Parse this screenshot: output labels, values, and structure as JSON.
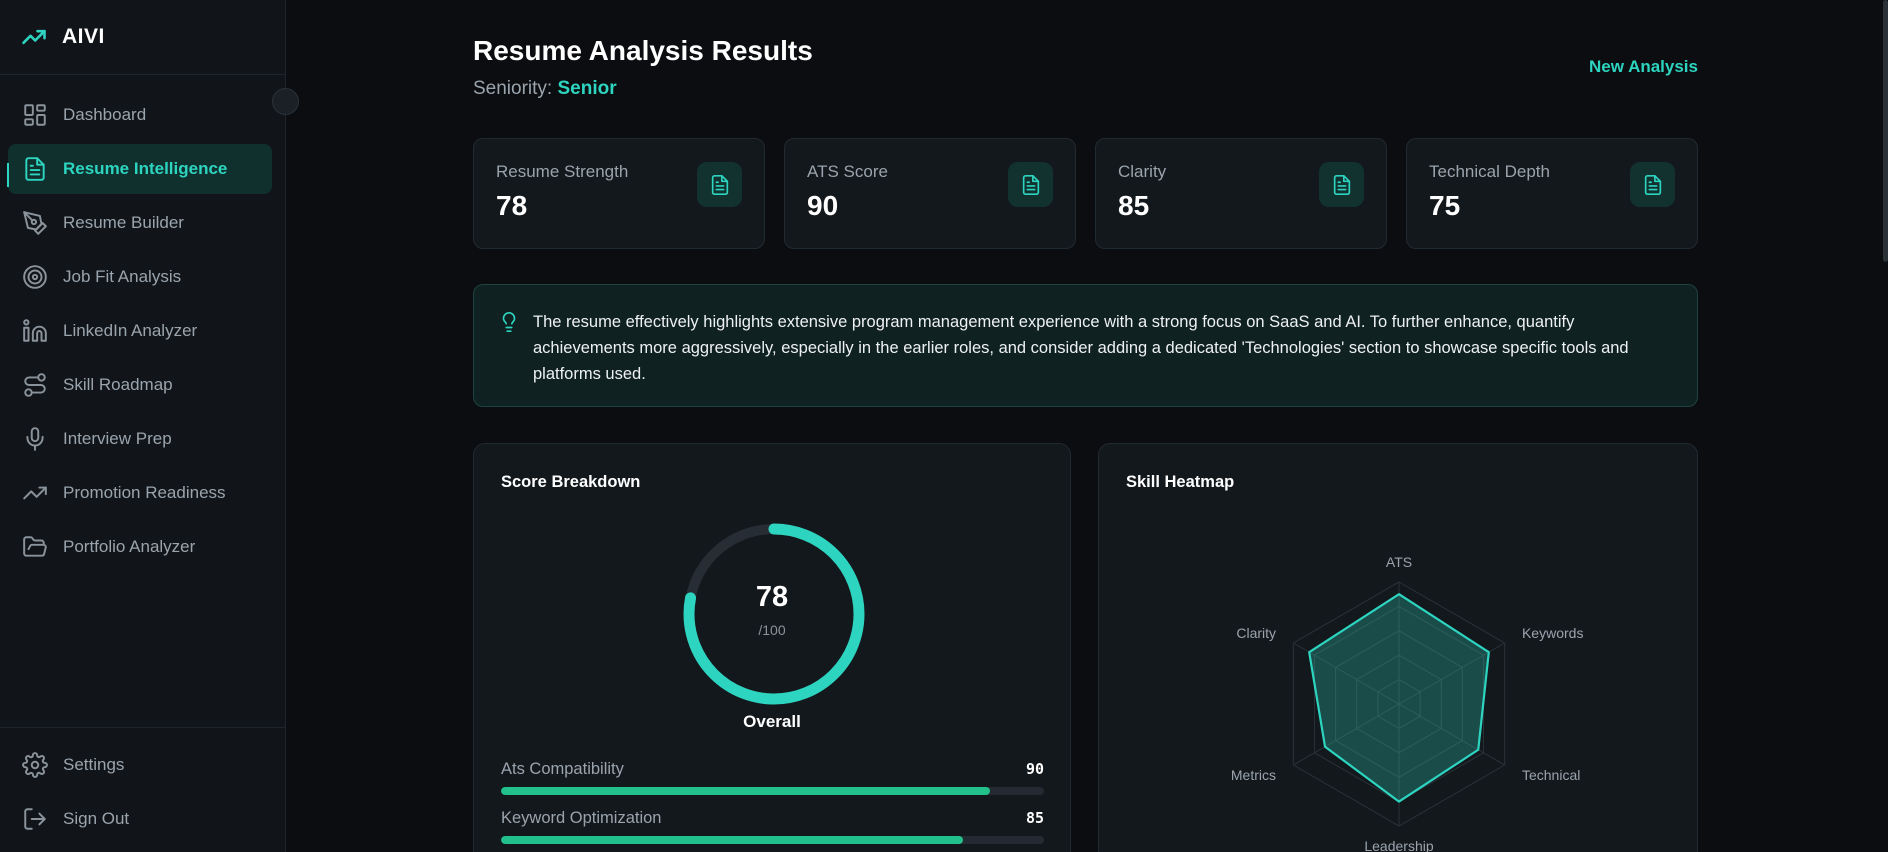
{
  "app": {
    "name": "AIVI"
  },
  "sidebar": {
    "items": [
      {
        "label": "Dashboard",
        "icon": "dashboard-icon"
      },
      {
        "label": "Resume Intelligence",
        "icon": "document-icon",
        "active": true
      },
      {
        "label": "Resume Builder",
        "icon": "pen-tool-icon"
      },
      {
        "label": "Job Fit Analysis",
        "icon": "target-icon"
      },
      {
        "label": "LinkedIn Analyzer",
        "icon": "linkedin-icon"
      },
      {
        "label": "Skill Roadmap",
        "icon": "route-icon"
      },
      {
        "label": "Interview Prep",
        "icon": "microphone-icon"
      },
      {
        "label": "Promotion Readiness",
        "icon": "trending-up-icon"
      },
      {
        "label": "Portfolio Analyzer",
        "icon": "folder-icon"
      }
    ],
    "bottom": [
      {
        "label": "Settings",
        "icon": "gear-icon"
      },
      {
        "label": "Sign Out",
        "icon": "sign-out-icon"
      }
    ]
  },
  "header": {
    "title": "Resume Analysis Results",
    "seniority_label": "Seniority:",
    "seniority_value": "Senior",
    "new_analysis": "New Analysis"
  },
  "stats": [
    {
      "label": "Resume Strength",
      "value": "78"
    },
    {
      "label": "ATS Score",
      "value": "90"
    },
    {
      "label": "Clarity",
      "value": "85"
    },
    {
      "label": "Technical Depth",
      "value": "75"
    }
  ],
  "summary": {
    "text": "The resume effectively highlights extensive program management experience with a strong focus on SaaS and AI. To further enhance, quantify achievements more aggressively, especially in the earlier roles, and consider adding a dedicated 'Technologies' section to showcase specific tools and platforms used."
  },
  "score_breakdown": {
    "title": "Score Breakdown",
    "overall_value": "78",
    "overall_suffix": "/100",
    "overall_fraction": 0.78,
    "overall_label": "Overall",
    "bars": [
      {
        "label": "Ats Compatibility",
        "value": 90
      },
      {
        "label": "Keyword Optimization",
        "value": 85
      }
    ]
  },
  "skill_heatmap": {
    "title": "Skill Heatmap",
    "axes": [
      "ATS",
      "Keywords",
      "Technical",
      "Leadership",
      "Metrics",
      "Clarity"
    ],
    "values": [
      90,
      85,
      75,
      80,
      70,
      85
    ],
    "max": 100
  },
  "colors": {
    "accent": "#2dd4bf",
    "bar": "#22c08a"
  }
}
